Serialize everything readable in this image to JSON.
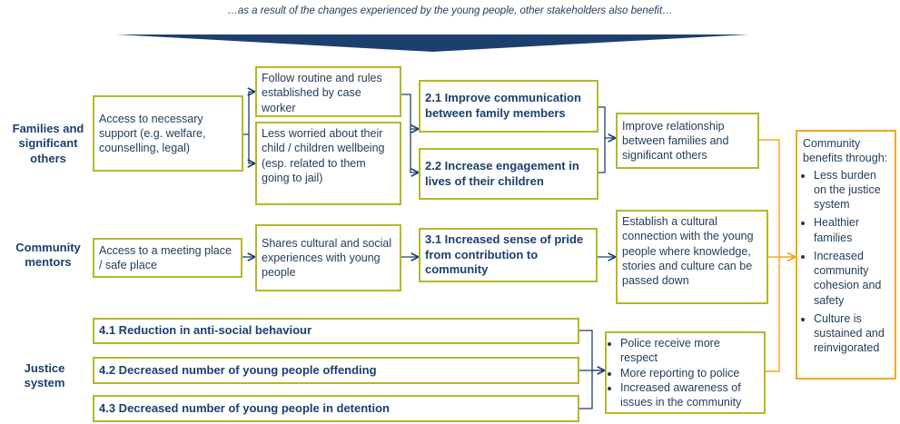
{
  "heading": "…as a result of the changes experienced by the young people, other stakeholders also benefit…",
  "stakeholders": {
    "families": "Families and significant others",
    "mentors": "Community mentors",
    "justice": "Justice system"
  },
  "families": {
    "access": "Access to necessary support (e.g. welfare, counselling, legal)",
    "follow": "Follow routine and rules established by case worker",
    "worried": "Less worried about their child / children wellbeing (esp. related to them going to jail)",
    "o21": "2.1 Improve communication between family members",
    "o22": "2.2 Increase engagement in lives of their children",
    "relationship": "Improve relationship between families and significant others"
  },
  "mentors": {
    "access": "Access to a meeting place / safe place",
    "shares": "Shares cultural and social experiences with young people",
    "o31": "3.1 Increased sense of pride from contribution to community",
    "connection": "Establish a cultural connection with the young people where knowledge, stories and culture can be passed down"
  },
  "justice": {
    "o41": "4.1 Reduction in anti-social behaviour",
    "o42": "4.2 Decreased number of young people offending",
    "o43": "4.3 Decreased number of young people in detention",
    "benefits": [
      "Police receive more respect",
      "More reporting to police",
      "Increased awareness of issues in the community"
    ]
  },
  "community": {
    "title": "Community benefits through:",
    "items": [
      "Less burden on the justice system",
      "Healthier families",
      "Increased community cohesion and safety",
      "Culture is sustained and reinvigorated"
    ]
  },
  "colors": {
    "box_border": "#b3b82a",
    "community_border": "#f0a81c",
    "text": "#1f3b5a",
    "banner": "#1c3f6e"
  }
}
